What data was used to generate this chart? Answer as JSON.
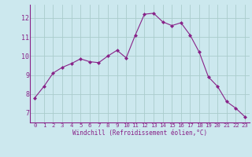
{
  "x": [
    0,
    1,
    2,
    3,
    4,
    5,
    6,
    7,
    8,
    9,
    10,
    11,
    12,
    13,
    14,
    15,
    16,
    17,
    18,
    19,
    20,
    21,
    22,
    23
  ],
  "y": [
    7.8,
    8.4,
    9.1,
    9.4,
    9.6,
    9.85,
    9.7,
    9.65,
    10.0,
    10.3,
    9.9,
    11.1,
    12.2,
    12.25,
    11.8,
    11.6,
    11.75,
    11.1,
    10.2,
    8.9,
    8.4,
    7.6,
    7.25,
    6.8
  ],
  "line_color": "#882288",
  "marker": "D",
  "marker_size": 2.0,
  "bg_color": "#cce8ee",
  "grid_color": "#aacccc",
  "xlabel": "Windchill (Refroidissement éolien,°C)",
  "xlabel_color": "#882288",
  "tick_color": "#882288",
  "ylim": [
    6.5,
    12.7
  ],
  "xlim": [
    -0.5,
    23.5
  ],
  "yticks": [
    7,
    8,
    9,
    10,
    11,
    12
  ],
  "xticks": [
    0,
    1,
    2,
    3,
    4,
    5,
    6,
    7,
    8,
    9,
    10,
    11,
    12,
    13,
    14,
    15,
    16,
    17,
    18,
    19,
    20,
    21,
    22,
    23
  ]
}
